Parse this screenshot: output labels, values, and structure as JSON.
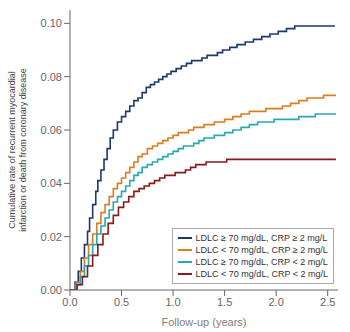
{
  "chart_data": {
    "type": "line",
    "line_style": "step",
    "xlabel": "Follow-up (years)",
    "ylabel": "Cumulative rate of recurrent myocardial\ninfarction or death from coronary disease",
    "xlim": [
      0,
      2.6
    ],
    "ylim": [
      0.0,
      0.105
    ],
    "xticks": [
      {
        "value": 0.0,
        "label": "0.0"
      },
      0.5,
      {
        "value": 1.0,
        "label": "1.0"
      },
      1.5,
      {
        "value": 2.0,
        "label": "2.0"
      },
      2.5
    ],
    "yticks": [
      {
        "value": 0.0,
        "label": "0.00"
      },
      {
        "value": 0.02,
        "label": "0.02"
      },
      {
        "value": 0.04,
        "label": "0.04"
      },
      {
        "value": 0.06,
        "label": "0.06"
      },
      {
        "value": 0.08,
        "label": "0.08"
      },
      {
        "value": 0.1,
        "label": "0.10"
      }
    ],
    "legend": "lower right",
    "grid": false,
    "series": [
      {
        "name": "LDLC ≥ 70 mg/dL, CRP ≥ 2 mg/L",
        "color": "#1a3a6b",
        "x": [
          0.0,
          0.05,
          0.08,
          0.11,
          0.14,
          0.17,
          0.19,
          0.22,
          0.25,
          0.27,
          0.3,
          0.33,
          0.36,
          0.39,
          0.42,
          0.46,
          0.5,
          0.54,
          0.58,
          0.62,
          0.66,
          0.7,
          0.74,
          0.78,
          0.82,
          0.86,
          0.9,
          0.94,
          0.98,
          1.03,
          1.08,
          1.13,
          1.18,
          1.23,
          1.28,
          1.33,
          1.38,
          1.43,
          1.48,
          1.55,
          1.62,
          1.7,
          1.78,
          1.86,
          1.94,
          2.02,
          2.1,
          2.18,
          2.26,
          2.34,
          2.42,
          2.5,
          2.57
        ],
        "values": [
          0.0,
          0.003,
          0.007,
          0.012,
          0.017,
          0.022,
          0.027,
          0.032,
          0.037,
          0.041,
          0.045,
          0.049,
          0.053,
          0.057,
          0.06,
          0.063,
          0.065,
          0.067,
          0.069,
          0.071,
          0.072,
          0.074,
          0.076,
          0.077,
          0.078,
          0.079,
          0.08,
          0.081,
          0.082,
          0.083,
          0.084,
          0.085,
          0.086,
          0.086,
          0.087,
          0.088,
          0.088,
          0.089,
          0.09,
          0.091,
          0.092,
          0.093,
          0.094,
          0.095,
          0.096,
          0.097,
          0.098,
          0.099,
          0.099,
          0.099,
          0.099,
          0.099,
          0.099
        ]
      },
      {
        "name": "LDLC < 70 mg/dL, CRP ≥ 2 mg/L",
        "color": "#E07B20",
        "x": [
          0.0,
          0.06,
          0.1,
          0.14,
          0.18,
          0.22,
          0.26,
          0.3,
          0.34,
          0.38,
          0.42,
          0.46,
          0.5,
          0.54,
          0.58,
          0.62,
          0.66,
          0.7,
          0.75,
          0.8,
          0.85,
          0.9,
          0.95,
          1.0,
          1.05,
          1.1,
          1.15,
          1.2,
          1.25,
          1.3,
          1.35,
          1.4,
          1.45,
          1.5,
          1.58,
          1.66,
          1.74,
          1.82,
          1.9,
          1.98,
          2.06,
          2.14,
          2.22,
          2.3,
          2.38,
          2.46,
          2.54,
          2.58
        ],
        "values": [
          0.0,
          0.003,
          0.007,
          0.012,
          0.017,
          0.021,
          0.025,
          0.029,
          0.032,
          0.035,
          0.038,
          0.04,
          0.042,
          0.044,
          0.046,
          0.048,
          0.05,
          0.051,
          0.053,
          0.054,
          0.055,
          0.056,
          0.057,
          0.058,
          0.059,
          0.059,
          0.06,
          0.061,
          0.061,
          0.062,
          0.062,
          0.063,
          0.063,
          0.064,
          0.065,
          0.066,
          0.067,
          0.067,
          0.068,
          0.068,
          0.069,
          0.07,
          0.071,
          0.072,
          0.072,
          0.073,
          0.073,
          0.073
        ]
      },
      {
        "name": "LDLC ≥ 70 mg/dL, CRP < 2 mg/L",
        "color": "#29A8B0",
        "x": [
          0.0,
          0.06,
          0.1,
          0.14,
          0.18,
          0.22,
          0.26,
          0.3,
          0.34,
          0.38,
          0.42,
          0.46,
          0.5,
          0.54,
          0.58,
          0.62,
          0.66,
          0.7,
          0.75,
          0.8,
          0.85,
          0.9,
          0.95,
          1.0,
          1.05,
          1.1,
          1.15,
          1.2,
          1.25,
          1.3,
          1.35,
          1.4,
          1.45,
          1.5,
          1.58,
          1.66,
          1.74,
          1.82,
          1.9,
          1.98,
          2.06,
          2.14,
          2.22,
          2.3,
          2.38,
          2.46,
          2.54,
          2.58
        ],
        "values": [
          0.0,
          0.002,
          0.005,
          0.009,
          0.013,
          0.017,
          0.021,
          0.024,
          0.027,
          0.03,
          0.033,
          0.035,
          0.037,
          0.039,
          0.041,
          0.043,
          0.044,
          0.046,
          0.047,
          0.048,
          0.049,
          0.05,
          0.051,
          0.052,
          0.053,
          0.054,
          0.054,
          0.055,
          0.056,
          0.057,
          0.057,
          0.058,
          0.058,
          0.059,
          0.06,
          0.061,
          0.062,
          0.063,
          0.063,
          0.064,
          0.064,
          0.064,
          0.065,
          0.065,
          0.066,
          0.066,
          0.066,
          0.066
        ]
      },
      {
        "name": "LDLC < 70 mg/dL, CRP < 2 mg/L",
        "color": "#8B1A1A",
        "x": [
          0.0,
          0.07,
          0.12,
          0.17,
          0.22,
          0.27,
          0.32,
          0.37,
          0.42,
          0.47,
          0.52,
          0.57,
          0.62,
          0.67,
          0.72,
          0.77,
          0.82,
          0.87,
          0.92,
          0.97,
          1.02,
          1.07,
          1.12,
          1.17,
          1.22,
          1.27,
          1.32,
          1.37,
          1.42,
          1.47,
          1.52,
          1.57,
          1.62,
          1.67,
          1.72,
          1.77,
          1.82,
          1.9,
          1.98,
          2.06,
          2.14,
          2.22,
          2.3,
          2.38,
          2.46,
          2.54,
          2.58
        ],
        "values": [
          0.0,
          0.002,
          0.005,
          0.009,
          0.013,
          0.017,
          0.021,
          0.025,
          0.028,
          0.031,
          0.033,
          0.035,
          0.037,
          0.038,
          0.039,
          0.04,
          0.041,
          0.042,
          0.043,
          0.043,
          0.044,
          0.044,
          0.045,
          0.046,
          0.047,
          0.047,
          0.048,
          0.048,
          0.048,
          0.048,
          0.049,
          0.049,
          0.049,
          0.049,
          0.049,
          0.049,
          0.049,
          0.049,
          0.049,
          0.049,
          0.049,
          0.049,
          0.049,
          0.049,
          0.049,
          0.049,
          0.049
        ]
      }
    ]
  }
}
